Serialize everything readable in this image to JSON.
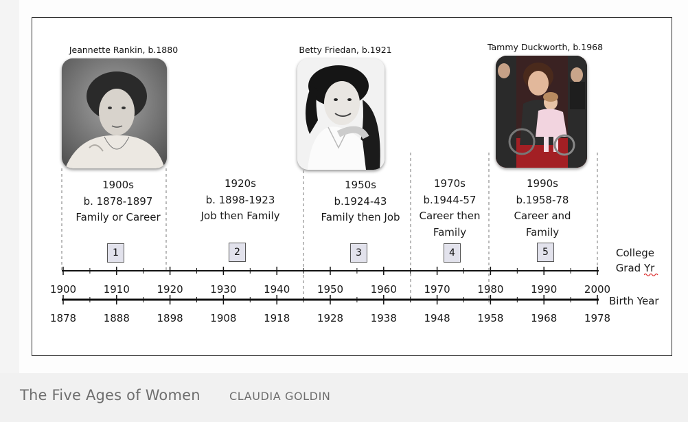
{
  "people": [
    {
      "name": "Jeannette Rankin, b.1880"
    },
    {
      "name": "Betty Friedan, b.1921"
    },
    {
      "name": "Tammy Duckworth, b.1968"
    }
  ],
  "eras": [
    {
      "number": "1",
      "line1": "1900s",
      "line2": "b. 1878-1897",
      "line3": "Family or Career"
    },
    {
      "number": "2",
      "line1": "1920s",
      "line2": "b. 1898-1923",
      "line3": "Job then Family"
    },
    {
      "number": "3",
      "line1": "1950s",
      "line2": "b.1924-43",
      "line3": "Family then Job"
    },
    {
      "number": "4",
      "line1": "1970s",
      "line2": "b.1944-57",
      "line3": "Career then",
      "line4": "Family"
    },
    {
      "number": "5",
      "line1": "1990s",
      "line2": "b.1958-78",
      "line3": "Career and",
      "line4": "Family"
    }
  ],
  "axes": {
    "college": {
      "label_line1": "College",
      "label_line2": "Grad Yr",
      "ticks": [
        "1900",
        "1910",
        "1920",
        "1930",
        "1940",
        "1950",
        "1960",
        "1970",
        "1980",
        "1990",
        "2000"
      ]
    },
    "birth": {
      "label": "Birth Year",
      "ticks": [
        "1878",
        "1888",
        "1898",
        "1908",
        "1918",
        "1928",
        "1938",
        "1948",
        "1958",
        "1968",
        "1978"
      ]
    }
  },
  "caption": {
    "title": "The Five Ages of Women",
    "credit": "CLAUDIA GOLDIN"
  }
}
